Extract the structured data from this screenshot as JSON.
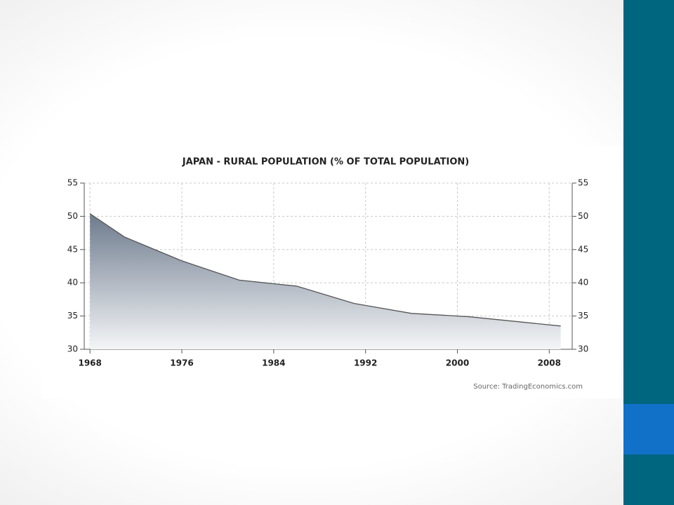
{
  "chart_data": {
    "type": "area",
    "title": "JAPAN - RURAL POPULATION (% OF TOTAL POPULATION)",
    "source": "Source: TradingEconomics.com",
    "x": [
      1968,
      1971,
      1976,
      1981,
      1986,
      1991,
      1996,
      2001,
      2009
    ],
    "values": [
      50.4,
      46.9,
      43.3,
      40.4,
      39.5,
      36.9,
      35.4,
      34.9,
      33.5
    ],
    "color": "#555555",
    "xlim": [
      1967.5,
      2010
    ],
    "xticks": [
      1968,
      1976,
      1984,
      1992,
      2000,
      2008
    ],
    "ylim": [
      30,
      55
    ],
    "yticks": [
      30,
      35,
      40,
      45,
      50,
      55
    ],
    "y2lim": [
      30,
      55
    ],
    "y2ticks": [
      30,
      35,
      40,
      45,
      50,
      55
    ],
    "grid": true
  }
}
